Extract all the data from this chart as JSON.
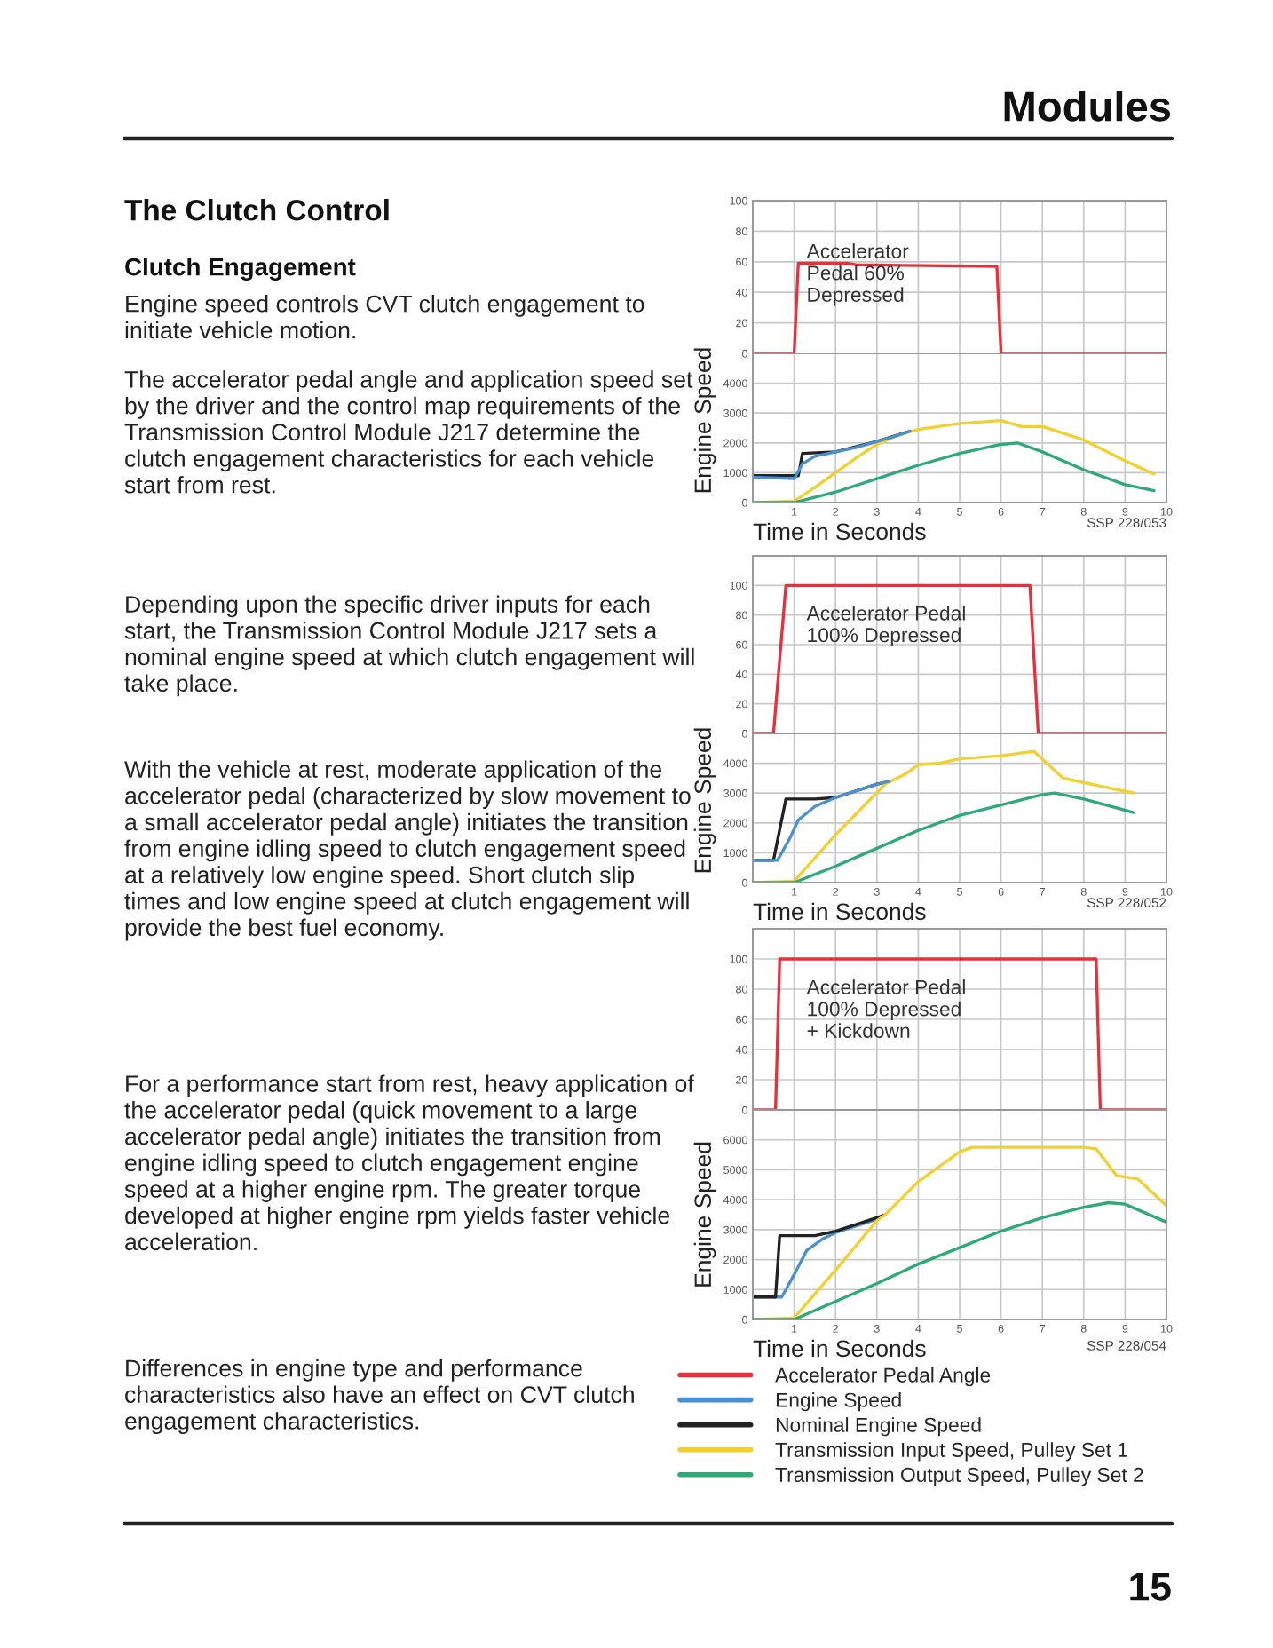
{
  "chart_data": [
    {
      "type": "other",
      "title": "The Clutch Control",
      "subtitle": "Clutch Engagement",
      "annotations": [
        "Modules",
        "Engine speed controls CVT clutch engagement to initiate vehicle motion.",
        "The accelerator pedal angle and application speed set by the driver and the control map requirements of the Transmission Control Module J217 determine the clutch engagement characteristics for each vehicle start from rest.",
        "Depending upon the specific driver inputs for each start, the Transmission Control Module J217 sets a nominal engine speed at which clutch engagement will take place.",
        "With the vehicle at rest, moderate application of the accelerator pedal (characterized by slow movement to a small accelerator pedal angle) initiates the transition from engine idling speed to clutch engagement speed at a relatively low engine speed. Short clutch slip times and low engine speed at clutch engagement will provide the best fuel economy.",
        "For a performance start from rest, heavy application of the accelerator pedal (quick movement to a large accelerator pedal angle) initiates the transition from engine idling speed to clutch engagement engine speed at a higher engine rpm. The greater torque developed at higher engine rpm yields faster vehicle acceleration.",
        "Differences in engine type and performance characteristics also have an effect on CVT clutch engagement characteristics.",
        "15"
      ]
    },
    {
      "type": "line",
      "xlim": [
        0,
        10
      ],
      "ylim": [
        0,
        100
      ],
      "yticks": [
        0,
        20,
        40,
        60,
        80,
        100
      ],
      "xticks": [
        {
          "value": 1,
          "label": null
        },
        {
          "value": 2,
          "label": null
        },
        {
          "value": 3,
          "label": null
        },
        {
          "value": 4,
          "label": null
        },
        {
          "value": 5,
          "label": null
        },
        {
          "value": 6,
          "label": null
        },
        {
          "value": 7,
          "label": null
        },
        {
          "value": 8,
          "label": null
        },
        {
          "value": 9,
          "label": null
        },
        {
          "value": 10,
          "label": null
        }
      ],
      "tick_labels": "y",
      "grid": true,
      "annotations": [
        "Accelerator\nPedal 60%\nDepressed"
      ],
      "series": [
        {
          "color": "#e8303a",
          "x": [
            0,
            1,
            1.1,
            2.3,
            2.5,
            5.9,
            6.0,
            10
          ],
          "values": [
            0,
            0,
            59,
            59,
            58,
            57,
            0,
            0
          ]
        }
      ]
    },
    {
      "type": "line",
      "xlim": [
        0,
        10
      ],
      "ylim": [
        0,
        5000
      ],
      "yticks": [
        0,
        1000,
        2000,
        3000,
        4000
      ],
      "xticks": [
        1,
        2,
        3,
        4,
        5,
        6,
        7,
        8,
        9,
        10
      ],
      "grid": true,
      "xlabel": "Time in Seconds",
      "ylabel": "Engine Speed",
      "annotations": [
        "SSP 228/053"
      ],
      "series": [
        {
          "color": "#222222",
          "x": [
            0,
            1.1,
            1.2,
            2,
            3,
            3.7
          ],
          "values": [
            900,
            900,
            1650,
            1700,
            2050,
            2350
          ]
        },
        {
          "color": "#f2d030",
          "x": [
            0,
            1,
            1.5,
            2,
            2.5,
            3,
            3.5,
            4,
            5,
            6,
            6.5,
            7,
            8,
            9,
            9.7
          ],
          "values": [
            0,
            50,
            500,
            1000,
            1500,
            1950,
            2250,
            2450,
            2650,
            2750,
            2550,
            2550,
            2100,
            1400,
            950
          ]
        },
        {
          "color": "#4a90d0",
          "x": [
            0,
            1,
            1.2,
            1.5,
            2,
            2.5,
            3,
            3.5,
            3.8
          ],
          "values": [
            850,
            800,
            1300,
            1550,
            1700,
            1850,
            2050,
            2250,
            2400
          ]
        },
        {
          "color": "#2eaa78",
          "x": [
            0,
            1,
            2,
            3,
            4,
            5,
            6,
            6.4,
            7,
            8,
            9,
            9.7
          ],
          "values": [
            0,
            0,
            350,
            800,
            1250,
            1650,
            1950,
            2000,
            1700,
            1100,
            600,
            400
          ]
        }
      ]
    },
    {
      "type": "line",
      "xlim": [
        0,
        10
      ],
      "ylim": [
        0,
        120
      ],
      "yticks": [
        0,
        20,
        40,
        60,
        80,
        100
      ],
      "xticks": [
        {
          "value": 1,
          "label": null
        },
        {
          "value": 2,
          "label": null
        },
        {
          "value": 3,
          "label": null
        },
        {
          "value": 4,
          "label": null
        },
        {
          "value": 5,
          "label": null
        },
        {
          "value": 6,
          "label": null
        },
        {
          "value": 7,
          "label": null
        },
        {
          "value": 8,
          "label": null
        },
        {
          "value": 9,
          "label": null
        },
        {
          "value": 10,
          "label": null
        }
      ],
      "tick_labels": "y",
      "grid": true,
      "annotations": [
        "Accelerator Pedal\n100% Depressed"
      ],
      "series": [
        {
          "color": "#e8303a",
          "x": [
            0,
            0.5,
            0.8,
            6.7,
            6.9,
            10
          ],
          "values": [
            0,
            0,
            100,
            100,
            0,
            0
          ]
        }
      ]
    },
    {
      "type": "line",
      "xlim": [
        0,
        10
      ],
      "ylim": [
        0,
        5000
      ],
      "yticks": [
        0,
        1000,
        2000,
        3000,
        4000
      ],
      "xticks": [
        1,
        2,
        3,
        4,
        5,
        6,
        7,
        8,
        9,
        10
      ],
      "grid": true,
      "xlabel": "Time in Seconds",
      "ylabel": "Engine Speed",
      "annotations": [
        "SSP 228/052"
      ],
      "series": [
        {
          "color": "#222222",
          "x": [
            0,
            0.5,
            0.8,
            1.5,
            2,
            3,
            3.2
          ],
          "values": [
            750,
            750,
            2800,
            2800,
            2850,
            3300,
            3350
          ]
        },
        {
          "color": "#f2d030",
          "x": [
            0,
            1,
            2,
            3.2,
            3.7,
            4,
            4.5,
            5,
            6,
            6.8,
            7.5,
            8,
            9.2
          ],
          "values": [
            0,
            50,
            1600,
            3300,
            3650,
            3950,
            4000,
            4150,
            4250,
            4400,
            3500,
            3350,
            3000
          ]
        },
        {
          "color": "#4a90d0",
          "x": [
            0,
            0.6,
            0.9,
            1.1,
            1.5,
            2,
            3,
            3.3
          ],
          "values": [
            750,
            750,
            1500,
            2100,
            2550,
            2850,
            3300,
            3400
          ]
        },
        {
          "color": "#2eaa78",
          "x": [
            0,
            1,
            2,
            3,
            4,
            4.5,
            5,
            6,
            7,
            7.3,
            8,
            9.2
          ],
          "values": [
            0,
            0,
            550,
            1150,
            1750,
            2000,
            2250,
            2600,
            2950,
            3000,
            2800,
            2350
          ]
        }
      ]
    },
    {
      "type": "line",
      "xlim": [
        0,
        10
      ],
      "ylim": [
        0,
        120
      ],
      "yticks": [
        0,
        20,
        40,
        60,
        80,
        100
      ],
      "xticks": [
        {
          "value": 1,
          "label": null
        },
        {
          "value": 2,
          "label": null
        },
        {
          "value": 3,
          "label": null
        },
        {
          "value": 4,
          "label": null
        },
        {
          "value": 5,
          "label": null
        },
        {
          "value": 6,
          "label": null
        },
        {
          "value": 7,
          "label": null
        },
        {
          "value": 8,
          "label": null
        },
        {
          "value": 9,
          "label": null
        },
        {
          "value": 10,
          "label": null
        }
      ],
      "tick_labels": "y",
      "grid": true,
      "annotations": [
        "Accelerator Pedal\n100% Depressed\n+ Kickdown"
      ],
      "series": [
        {
          "name": "Accelerator Pedal Angle",
          "color": "#e8303a",
          "x": [
            0,
            0.55,
            0.65,
            8.3,
            8.4,
            10
          ],
          "values": [
            0,
            0,
            100,
            100,
            0,
            0
          ]
        }
      ]
    },
    {
      "type": "line",
      "xlim": [
        0,
        10
      ],
      "ylim": [
        0,
        7000
      ],
      "yticks": [
        0,
        1000,
        2000,
        3000,
        4000,
        5000,
        6000
      ],
      "xticks": [
        1,
        2,
        3,
        4,
        5,
        6,
        7,
        8,
        9,
        10
      ],
      "grid": true,
      "xlabel": "Time in Seconds",
      "ylabel": "Engine Speed",
      "annotations": [
        "SSP 228/054"
      ],
      "legend": "bottom",
      "series": [
        {
          "name": "Engine Speed",
          "color": "#4a90d0",
          "x": [
            0,
            0.7,
            1,
            1.3,
            1.7,
            2,
            3,
            3.2
          ],
          "values": [
            750,
            750,
            1500,
            2300,
            2700,
            2900,
            3350,
            3500
          ]
        },
        {
          "name": "Nominal Engine Speed",
          "color": "#222222",
          "x": [
            0,
            0.55,
            0.65,
            1.5,
            2,
            3,
            3.2
          ],
          "values": [
            750,
            750,
            2800,
            2800,
            2950,
            3400,
            3500
          ]
        },
        {
          "name": "Transmission Input Speed, Pulley Set 1",
          "color": "#f2d030",
          "x": [
            0,
            1,
            2,
            3,
            3.2,
            4,
            5,
            5.3,
            6,
            7,
            8,
            8.3,
            8.8,
            9.3,
            10
          ],
          "values": [
            0,
            50,
            1650,
            3300,
            3500,
            4600,
            5600,
            5750,
            5750,
            5750,
            5750,
            5700,
            4800,
            4700,
            3800
          ]
        },
        {
          "name": "Transmission Output Speed, Pulley Set 2",
          "color": "#2eaa78",
          "x": [
            0,
            1,
            2,
            3,
            4,
            5,
            6,
            7,
            8,
            8.6,
            9,
            10
          ],
          "values": [
            0,
            0,
            600,
            1200,
            1850,
            2400,
            2950,
            3400,
            3750,
            3900,
            3850,
            3250
          ]
        }
      ]
    }
  ]
}
